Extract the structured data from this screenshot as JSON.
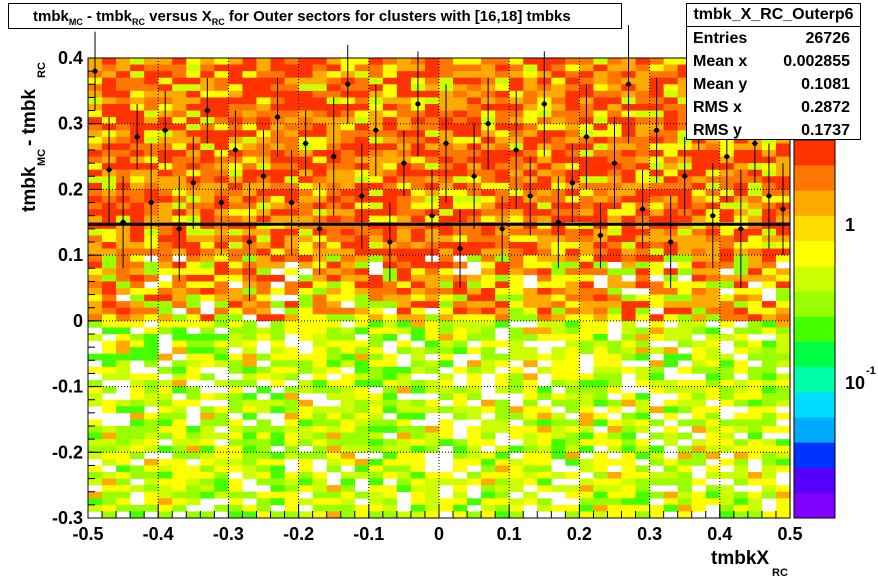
{
  "title": {
    "parts": [
      {
        "text": "tmbk",
        "sub": "MC"
      },
      {
        "text": " - tmbk",
        "sub": "RC"
      },
      {
        "text": " versus X",
        "sub": "RC"
      },
      {
        "text": " for Outer sectors for clusters with [16,18] tmbks",
        "sub": ""
      }
    ]
  },
  "stats": {
    "name": "tmbk_X_RC_Outerp6",
    "rows": [
      {
        "label": "Entries",
        "value": "26726"
      },
      {
        "label": "Mean x",
        "value": "0.002855"
      },
      {
        "label": "Mean y",
        "value": "0.1081"
      },
      {
        "label": "RMS x",
        "value": "0.2872"
      },
      {
        "label": "RMS y",
        "value": "0.1737"
      }
    ]
  },
  "chart_data": {
    "type": "heatmap",
    "xlabel": {
      "main": "tmbkX",
      "sub": "RC"
    },
    "ylabel": {
      "main1": "tmbk",
      "sub1": "MC",
      "main2": " - tmbk",
      "sub2": "RC"
    },
    "xlim": [
      -0.5,
      0.5
    ],
    "ylim": [
      -0.3,
      0.4
    ],
    "x_ticks": [
      "-0.5",
      "-0.4",
      "-0.3",
      "-0.2",
      "-0.1",
      "0",
      "0.1",
      "0.2",
      "0.3",
      "0.4",
      "0.5"
    ],
    "y_ticks": [
      "-0.3",
      "-0.2",
      "-0.1",
      "0",
      "0.1",
      "0.2",
      "0.3",
      "0.4"
    ],
    "grid": true,
    "colorbar": {
      "scale": "log",
      "labels": [
        {
          "text": "1",
          "exp": ""
        },
        {
          "text": "10",
          "exp": "-1"
        }
      ],
      "colors": [
        "#7f00ff",
        "#5500ff",
        "#0033ff",
        "#00aaff",
        "#00ddff",
        "#00ffaa",
        "#00ff44",
        "#44ff00",
        "#99ff00",
        "#ccff00",
        "#ffff00",
        "#ffdd00",
        "#ffaa00",
        "#ff7700",
        "#ff3300"
      ]
    },
    "fit_line_y": 0.147,
    "profile": {
      "x": [
        -0.49,
        -0.47,
        -0.45,
        -0.43,
        -0.41,
        -0.39,
        -0.37,
        -0.35,
        -0.33,
        -0.31,
        -0.29,
        -0.27,
        -0.25,
        -0.23,
        -0.21,
        -0.19,
        -0.17,
        -0.15,
        -0.13,
        -0.11,
        -0.09,
        -0.07,
        -0.05,
        -0.03,
        -0.01,
        0.01,
        0.03,
        0.05,
        0.07,
        0.09,
        0.11,
        0.13,
        0.15,
        0.17,
        0.19,
        0.21,
        0.23,
        0.25,
        0.27,
        0.29,
        0.31,
        0.33,
        0.35,
        0.37,
        0.39,
        0.41,
        0.43,
        0.45,
        0.47,
        0.49
      ],
      "y": [
        0.38,
        0.23,
        0.15,
        0.28,
        0.18,
        0.29,
        0.14,
        0.21,
        0.32,
        0.18,
        0.26,
        0.12,
        0.22,
        0.31,
        0.18,
        0.27,
        0.14,
        0.25,
        0.36,
        0.19,
        0.29,
        0.12,
        0.24,
        0.33,
        0.16,
        0.27,
        0.11,
        0.22,
        0.3,
        0.14,
        0.26,
        0.19,
        0.33,
        0.15,
        0.21,
        0.28,
        0.13,
        0.24,
        0.36,
        0.17,
        0.29,
        0.12,
        0.22,
        0.31,
        0.16,
        0.25,
        0.14,
        0.27,
        0.19,
        0.17
      ],
      "err": [
        0.06,
        0.08,
        0.07,
        0.05,
        0.09,
        0.06,
        0.08,
        0.07,
        0.05,
        0.08,
        0.06,
        0.09,
        0.07,
        0.06,
        0.08,
        0.05,
        0.07,
        0.09,
        0.06,
        0.08,
        0.07,
        0.06,
        0.05,
        0.08,
        0.07,
        0.09,
        0.06,
        0.08,
        0.07,
        0.05,
        0.09,
        0.06,
        0.08,
        0.07,
        0.06,
        0.08,
        0.05,
        0.07,
        0.09,
        0.06,
        0.08,
        0.07,
        0.06,
        0.05,
        0.08,
        0.07,
        0.09,
        0.06,
        0.08,
        0.07
      ]
    }
  }
}
